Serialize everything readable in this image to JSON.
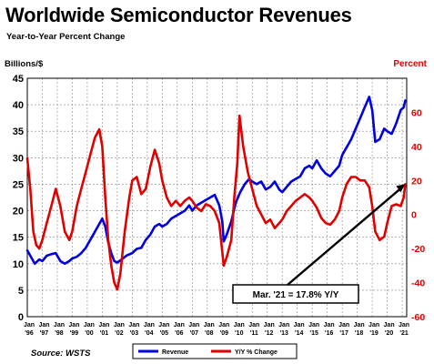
{
  "chart_data": {
    "type": "line",
    "title": "Worldwide Semiconductor Revenues",
    "subtitle": "Year-to-Year Percent Change",
    "ylabel_left": "Billions/$",
    "ylabel_right": "Percent",
    "source": "Source: WSTS",
    "left_axis": {
      "ylim": [
        0,
        45
      ],
      "ticks": [
        "0",
        "5",
        "10",
        "15",
        "20",
        "25",
        "30",
        "35",
        "40",
        "45"
      ]
    },
    "right_axis": {
      "ylim": [
        -60,
        80
      ],
      "ticks": [
        "-60",
        "-40",
        "-20",
        "0",
        "20",
        "40",
        "60"
      ]
    },
    "x_ticks": [
      {
        "top": "Jan",
        "bottom": "'96",
        "x": 1996
      },
      {
        "top": "Jan",
        "bottom": "'97",
        "x": 1997
      },
      {
        "top": "Jan",
        "bottom": "'98",
        "x": 1998
      },
      {
        "top": "Jan",
        "bottom": "'99",
        "x": 1999
      },
      {
        "top": "Jan",
        "bottom": "'00",
        "x": 2000
      },
      {
        "top": "Jan",
        "bottom": "'01",
        "x": 2001
      },
      {
        "top": "Jan",
        "bottom": "'02",
        "x": 2002
      },
      {
        "top": "Jan",
        "bottom": "'03",
        "x": 2003
      },
      {
        "top": "Jan",
        "bottom": "'04",
        "x": 2004
      },
      {
        "top": "Jan",
        "bottom": "'05",
        "x": 2005
      },
      {
        "top": "Jan",
        "bottom": "'06",
        "x": 2006
      },
      {
        "top": "Jan",
        "bottom": "'07",
        "x": 2007
      },
      {
        "top": "Jan",
        "bottom": "'08",
        "x": 2008
      },
      {
        "top": "Jan",
        "bottom": "'09",
        "x": 2009
      },
      {
        "top": "Jan",
        "bottom": "'10",
        "x": 2010
      },
      {
        "top": "Jan",
        "bottom": "'11",
        "x": 2011
      },
      {
        "top": "Jan",
        "bottom": "'12",
        "x": 2012
      },
      {
        "top": "Jan",
        "bottom": "'13",
        "x": 2013
      },
      {
        "top": "Jan",
        "bottom": "'14",
        "x": 2014
      },
      {
        "top": "Jan",
        "bottom": "'15",
        "x": 2015
      },
      {
        "top": "Jan",
        "bottom": "'16",
        "x": 2016
      },
      {
        "top": "Jan",
        "bottom": "'17",
        "x": 2017
      },
      {
        "top": "Jan",
        "bottom": "'18",
        "x": 2018
      },
      {
        "top": "Jan",
        "bottom": "'19",
        "x": 2019
      },
      {
        "top": "Jan",
        "bottom": "'20",
        "x": 2020
      },
      {
        "top": "Jan",
        "bottom": "'21",
        "x": 2021
      }
    ],
    "grid": true,
    "legend_position": "bottom",
    "series": [
      {
        "name": "Revenue",
        "axis": "left",
        "color": "#0000e0",
        "points": [
          [
            1996.0,
            12.5
          ],
          [
            1996.2,
            11.5
          ],
          [
            1996.5,
            10.0
          ],
          [
            1996.8,
            10.8
          ],
          [
            1997.0,
            10.5
          ],
          [
            1997.3,
            11.5
          ],
          [
            1997.6,
            11.8
          ],
          [
            1997.9,
            12.0
          ],
          [
            1998.2,
            10.5
          ],
          [
            1998.5,
            10.0
          ],
          [
            1998.8,
            10.5
          ],
          [
            1999.0,
            11.0
          ],
          [
            1999.3,
            11.3
          ],
          [
            1999.6,
            12.0
          ],
          [
            1999.9,
            13.0
          ],
          [
            2000.2,
            14.5
          ],
          [
            2000.5,
            16.0
          ],
          [
            2000.8,
            17.5
          ],
          [
            2001.0,
            18.5
          ],
          [
            2001.2,
            17.0
          ],
          [
            2001.4,
            14.0
          ],
          [
            2001.6,
            12.0
          ],
          [
            2001.8,
            10.5
          ],
          [
            2002.0,
            10.2
          ],
          [
            2002.3,
            10.8
          ],
          [
            2002.6,
            11.5
          ],
          [
            2003.0,
            12.0
          ],
          [
            2003.3,
            12.8
          ],
          [
            2003.6,
            13.0
          ],
          [
            2003.9,
            14.5
          ],
          [
            2004.2,
            15.5
          ],
          [
            2004.5,
            17.0
          ],
          [
            2004.8,
            17.5
          ],
          [
            2005.0,
            17.0
          ],
          [
            2005.3,
            17.5
          ],
          [
            2005.6,
            18.5
          ],
          [
            2005.9,
            19.0
          ],
          [
            2006.2,
            19.5
          ],
          [
            2006.5,
            20.0
          ],
          [
            2006.8,
            21.0
          ],
          [
            2007.0,
            20.0
          ],
          [
            2007.3,
            21.0
          ],
          [
            2007.6,
            21.5
          ],
          [
            2007.9,
            22.0
          ],
          [
            2008.2,
            22.5
          ],
          [
            2008.5,
            23.0
          ],
          [
            2008.8,
            21.0
          ],
          [
            2009.0,
            18.0
          ],
          [
            2009.1,
            14.2
          ],
          [
            2009.3,
            15.5
          ],
          [
            2009.6,
            18.0
          ],
          [
            2009.9,
            21.5
          ],
          [
            2010.2,
            23.5
          ],
          [
            2010.5,
            25.0
          ],
          [
            2010.8,
            26.0
          ],
          [
            2011.0,
            25.5
          ],
          [
            2011.3,
            25.0
          ],
          [
            2011.6,
            25.5
          ],
          [
            2011.9,
            24.0
          ],
          [
            2012.2,
            24.5
          ],
          [
            2012.5,
            25.5
          ],
          [
            2012.8,
            24.0
          ],
          [
            2013.0,
            23.5
          ],
          [
            2013.3,
            24.5
          ],
          [
            2013.6,
            25.5
          ],
          [
            2013.9,
            26.0
          ],
          [
            2014.2,
            26.5
          ],
          [
            2014.5,
            28.0
          ],
          [
            2014.8,
            28.5
          ],
          [
            2015.0,
            28.0
          ],
          [
            2015.3,
            29.5
          ],
          [
            2015.6,
            28.0
          ],
          [
            2015.9,
            27.0
          ],
          [
            2016.2,
            26.5
          ],
          [
            2016.5,
            27.5
          ],
          [
            2016.8,
            28.5
          ],
          [
            2017.0,
            30.5
          ],
          [
            2017.3,
            32.0
          ],
          [
            2017.6,
            33.5
          ],
          [
            2017.9,
            35.5
          ],
          [
            2018.2,
            37.5
          ],
          [
            2018.5,
            39.5
          ],
          [
            2018.8,
            41.5
          ],
          [
            2019.0,
            39.0
          ],
          [
            2019.2,
            33.0
          ],
          [
            2019.5,
            33.5
          ],
          [
            2019.8,
            35.5
          ],
          [
            2020.0,
            35.0
          ],
          [
            2020.3,
            34.5
          ],
          [
            2020.6,
            36.5
          ],
          [
            2020.9,
            39.0
          ],
          [
            2021.1,
            39.5
          ],
          [
            2021.2,
            40.8
          ]
        ]
      },
      {
        "name": "Y/Y % Change",
        "axis": "right",
        "color": "#e00000",
        "points": [
          [
            1996.0,
            33
          ],
          [
            1996.2,
            15
          ],
          [
            1996.4,
            -10
          ],
          [
            1996.6,
            -18
          ],
          [
            1996.8,
            -20
          ],
          [
            1997.0,
            -15
          ],
          [
            1997.3,
            -5
          ],
          [
            1997.6,
            5
          ],
          [
            1997.9,
            15
          ],
          [
            1998.2,
            5
          ],
          [
            1998.5,
            -10
          ],
          [
            1998.8,
            -15
          ],
          [
            1999.0,
            -10
          ],
          [
            1999.3,
            5
          ],
          [
            1999.6,
            15
          ],
          [
            1999.9,
            25
          ],
          [
            2000.2,
            35
          ],
          [
            2000.5,
            45
          ],
          [
            2000.8,
            50
          ],
          [
            2001.0,
            40
          ],
          [
            2001.2,
            10
          ],
          [
            2001.4,
            -15
          ],
          [
            2001.6,
            -30
          ],
          [
            2001.8,
            -40
          ],
          [
            2002.0,
            -44
          ],
          [
            2002.2,
            -35
          ],
          [
            2002.5,
            -10
          ],
          [
            2002.8,
            10
          ],
          [
            2003.0,
            20
          ],
          [
            2003.3,
            22
          ],
          [
            2003.6,
            12
          ],
          [
            2003.9,
            15
          ],
          [
            2004.2,
            28
          ],
          [
            2004.5,
            38
          ],
          [
            2004.8,
            30
          ],
          [
            2005.0,
            20
          ],
          [
            2005.3,
            10
          ],
          [
            2005.6,
            5
          ],
          [
            2005.9,
            8
          ],
          [
            2006.2,
            5
          ],
          [
            2006.5,
            8
          ],
          [
            2006.8,
            10
          ],
          [
            2007.0,
            8
          ],
          [
            2007.3,
            4
          ],
          [
            2007.6,
            2
          ],
          [
            2007.9,
            6
          ],
          [
            2008.2,
            5
          ],
          [
            2008.5,
            2
          ],
          [
            2008.8,
            -5
          ],
          [
            2009.0,
            -22
          ],
          [
            2009.1,
            -30
          ],
          [
            2009.3,
            -25
          ],
          [
            2009.6,
            -15
          ],
          [
            2009.8,
            10
          ],
          [
            2010.0,
            30
          ],
          [
            2010.15,
            58
          ],
          [
            2010.4,
            40
          ],
          [
            2010.7,
            25
          ],
          [
            2011.0,
            15
          ],
          [
            2011.3,
            5
          ],
          [
            2011.6,
            0
          ],
          [
            2011.9,
            -5
          ],
          [
            2012.2,
            -3
          ],
          [
            2012.5,
            -8
          ],
          [
            2012.8,
            -5
          ],
          [
            2013.0,
            -3
          ],
          [
            2013.3,
            2
          ],
          [
            2013.6,
            5
          ],
          [
            2013.9,
            8
          ],
          [
            2014.2,
            10
          ],
          [
            2014.5,
            12
          ],
          [
            2014.8,
            10
          ],
          [
            2015.0,
            8
          ],
          [
            2015.3,
            4
          ],
          [
            2015.6,
            -2
          ],
          [
            2015.9,
            -5
          ],
          [
            2016.2,
            -6
          ],
          [
            2016.5,
            -3
          ],
          [
            2016.8,
            2
          ],
          [
            2017.0,
            10
          ],
          [
            2017.3,
            18
          ],
          [
            2017.6,
            22
          ],
          [
            2017.9,
            22
          ],
          [
            2018.2,
            20
          ],
          [
            2018.5,
            20
          ],
          [
            2018.8,
            16
          ],
          [
            2019.0,
            5
          ],
          [
            2019.2,
            -10
          ],
          [
            2019.5,
            -15
          ],
          [
            2019.8,
            -13
          ],
          [
            2020.0,
            -5
          ],
          [
            2020.3,
            5
          ],
          [
            2020.6,
            6
          ],
          [
            2020.9,
            5
          ],
          [
            2021.1,
            10
          ],
          [
            2021.2,
            17.8
          ]
        ]
      }
    ],
    "annotation": {
      "text": "Mar. '21 = 17.8% Y/Y",
      "x": 2021.2,
      "y_right": 17.8
    }
  }
}
